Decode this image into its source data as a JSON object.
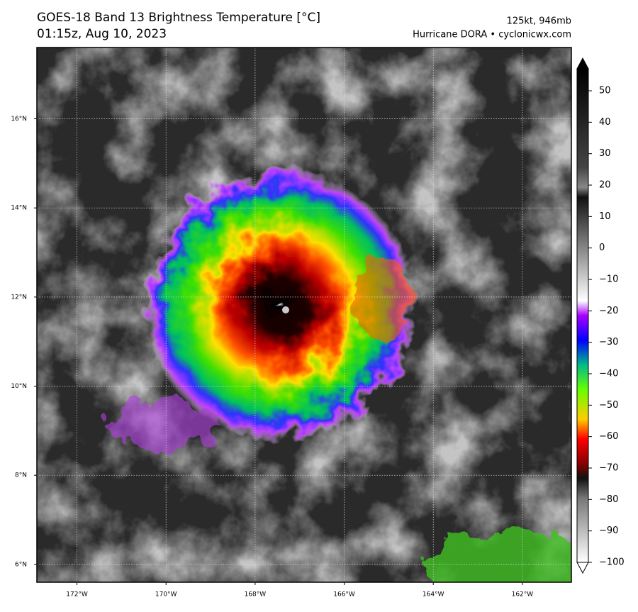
{
  "header": {
    "title": "GOES-18 Band 13 Brightness Temperature [°C]",
    "subtitle": "01:15z, Aug 10, 2023",
    "intensity": "125kt, 946mb",
    "credit": "Hurricane DORA • cyclonicwx.com"
  },
  "map": {
    "xlim": [
      -172.9,
      -160.9
    ],
    "ylim": [
      5.6,
      17.6
    ],
    "xticks": [
      {
        "value": -172,
        "label": "172°W"
      },
      {
        "value": -170,
        "label": "170°W"
      },
      {
        "value": -168,
        "label": "168°W"
      },
      {
        "value": -166,
        "label": "166°W"
      },
      {
        "value": -164,
        "label": "164°W"
      },
      {
        "value": -162,
        "label": "162°W"
      }
    ],
    "yticks": [
      {
        "value": 6,
        "label": "6°N"
      },
      {
        "value": 8,
        "label": "8°N"
      },
      {
        "value": 10,
        "label": "10°N"
      },
      {
        "value": 12,
        "label": "12°N"
      },
      {
        "value": 14,
        "label": "14°N"
      },
      {
        "value": 16,
        "label": "16°N"
      }
    ],
    "grid": true
  },
  "colorbar": {
    "lim": [
      -100,
      57
    ],
    "ticks": [
      {
        "value": -100,
        "label": "−100"
      },
      {
        "value": -90,
        "label": "−90"
      },
      {
        "value": -80,
        "label": "−80"
      },
      {
        "value": -70,
        "label": "−70"
      },
      {
        "value": -60,
        "label": "−60"
      },
      {
        "value": -50,
        "label": "−50"
      },
      {
        "value": -40,
        "label": "−40"
      },
      {
        "value": -30,
        "label": "−30"
      },
      {
        "value": -20,
        "label": "−20"
      },
      {
        "value": -10,
        "label": "−10"
      },
      0,
      10,
      20,
      30,
      40,
      50
    ]
  }
}
